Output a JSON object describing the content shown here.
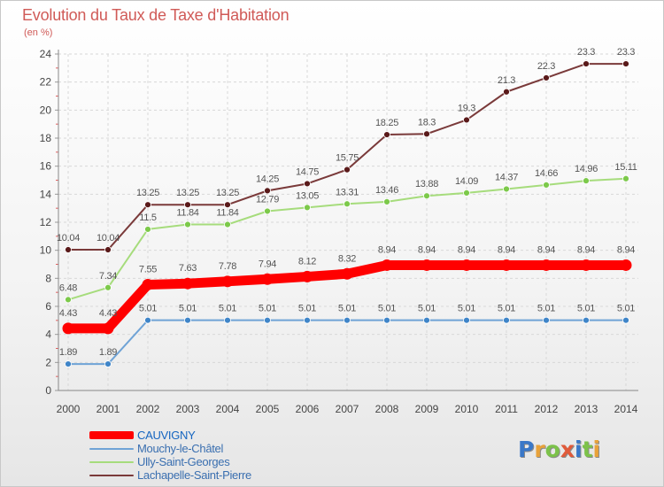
{
  "title": "Evolution du Taux de Taxe d'Habitation",
  "unit_label": "(en %)",
  "logo": {
    "letters": [
      "P",
      "r",
      "o",
      "x",
      "i",
      "t",
      "i"
    ],
    "colors": [
      "#3a78c8",
      "#e8a23a",
      "#7cc24a",
      "#e05a3a",
      "#3a78c8",
      "#7cc24a",
      "#e8a23a"
    ]
  },
  "chart_data": {
    "type": "line",
    "title": "Evolution du Taux de Taxe d'Habitation",
    "ylabel": "(en %)",
    "xlabel": "",
    "ylim": [
      0,
      24
    ],
    "yticks": [
      0,
      2,
      4,
      6,
      8,
      10,
      12,
      14,
      16,
      18,
      20,
      22,
      24
    ],
    "grid": true,
    "x": [
      2000,
      2001,
      2002,
      2003,
      2004,
      2005,
      2006,
      2007,
      2008,
      2009,
      2010,
      2011,
      2012,
      2013,
      2014
    ],
    "series": [
      {
        "name": "CAUVIGNY",
        "color": "#ff0000",
        "marker_color": "#ff0000",
        "emphasis": true,
        "values": [
          4.43,
          4.43,
          7.55,
          7.63,
          7.78,
          7.94,
          8.12,
          8.32,
          8.94,
          8.94,
          8.94,
          8.94,
          8.94,
          8.94,
          8.94
        ],
        "labels": [
          "4.43",
          "4.43",
          "7.55",
          "7.63",
          "7.78",
          "7.94",
          "8.12",
          "8.32",
          "8.94",
          "8.94",
          "8.94",
          "8.94",
          "8.94",
          "8.94",
          "8.94"
        ]
      },
      {
        "name": "Mouchy-le-Châtel",
        "color": "#6fa3d6",
        "marker_color": "#3f85c8",
        "emphasis": false,
        "values": [
          1.89,
          1.89,
          5.01,
          5.01,
          5.01,
          5.01,
          5.01,
          5.01,
          5.01,
          5.01,
          5.01,
          5.01,
          5.01,
          5.01,
          5.01
        ],
        "labels": [
          "1.89",
          "1.89",
          "5.01",
          "5.01",
          "5.01",
          "5.01",
          "5.01",
          "5.01",
          "5.01",
          "5.01",
          "5.01",
          "5.01",
          "5.01",
          "5.01",
          "5.01"
        ]
      },
      {
        "name": "Ully-Saint-Georges",
        "color": "#a6dc7c",
        "marker_color": "#7cc94a",
        "emphasis": false,
        "values": [
          6.48,
          7.34,
          11.5,
          11.84,
          11.84,
          12.79,
          13.05,
          13.31,
          13.46,
          13.88,
          14.09,
          14.37,
          14.66,
          14.96,
          15.11
        ],
        "labels": [
          "6.48",
          "7.34",
          "11.5",
          "11.84",
          "11.84",
          "12.79",
          "13.05",
          "13.31",
          "13.46",
          "13.88",
          "14.09",
          "14.37",
          "14.66",
          "14.96",
          "15.11"
        ]
      },
      {
        "name": "Lachapelle-Saint-Pierre",
        "color": "#7a3a3a",
        "marker_color": "#5a1a1a",
        "emphasis": false,
        "values": [
          10.04,
          10.04,
          13.25,
          13.25,
          13.25,
          14.25,
          14.75,
          15.75,
          18.25,
          18.3,
          19.3,
          21.3,
          22.3,
          23.3,
          23.3
        ],
        "labels": [
          "10.04",
          "10.04",
          "13.25",
          "13.25",
          "13.25",
          "14.25",
          "14.75",
          "15.75",
          "18.25",
          "18.3",
          "19.3",
          "21.3",
          "22.3",
          "23.3",
          "23.3"
        ]
      }
    ]
  }
}
